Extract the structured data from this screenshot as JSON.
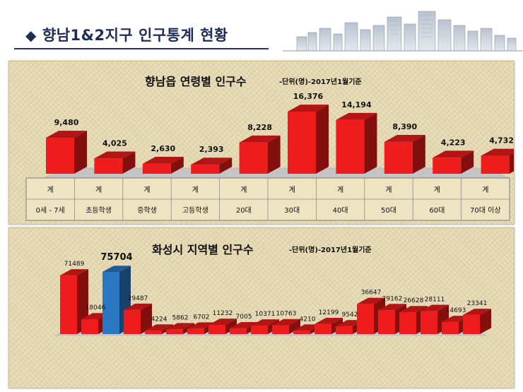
{
  "header": {
    "title": "향남1&2지구 인구통계 현황"
  },
  "chart_data": [
    {
      "type": "bar",
      "title": "향남읍 연령별 인구수",
      "subtitle": "-단위(명)-2017년1월기준",
      "categories": [
        "0세 - 7세",
        "초등학생",
        "중학생",
        "고등학생",
        "20대",
        "30대",
        "40대",
        "50대",
        "60대",
        "70대 이상"
      ],
      "row_label": "계",
      "values": [
        9480,
        4025,
        2630,
        2393,
        8228,
        16376,
        14194,
        8390,
        4223,
        4732
      ],
      "value_labels": [
        "9,480",
        "4,025",
        "2,630",
        "2,393",
        "8,228",
        "16,376",
        "14,194",
        "8,390",
        "4,223",
        "4,732"
      ],
      "ylim": [
        0,
        16376
      ],
      "bar_color": "#ee1c1c",
      "grid": false
    },
    {
      "type": "bar",
      "title": "화성시 지역별 인구수",
      "subtitle": "-단위(명)-2017년1월기준",
      "values": [
        71489,
        18046,
        75704,
        29487,
        4224,
        5862,
        6702,
        11232,
        7005,
        10371,
        10763,
        4210,
        12199,
        9542,
        36647,
        29162,
        26628,
        28111,
        14693,
        23341
      ],
      "value_labels": [
        "71489",
        "18046",
        "75704",
        "29487",
        "4224",
        "5862",
        "6702",
        "11232",
        "7005",
        "10371",
        "10763",
        "4210",
        "12199",
        "9542",
        "36647",
        "29162",
        "26628",
        "28111",
        "14693",
        "23341"
      ],
      "highlight_index": 2,
      "ylim": [
        0,
        75704
      ],
      "bar_color": "#ee1c1c",
      "highlight_color": "#2b78c2",
      "grid": false
    }
  ]
}
